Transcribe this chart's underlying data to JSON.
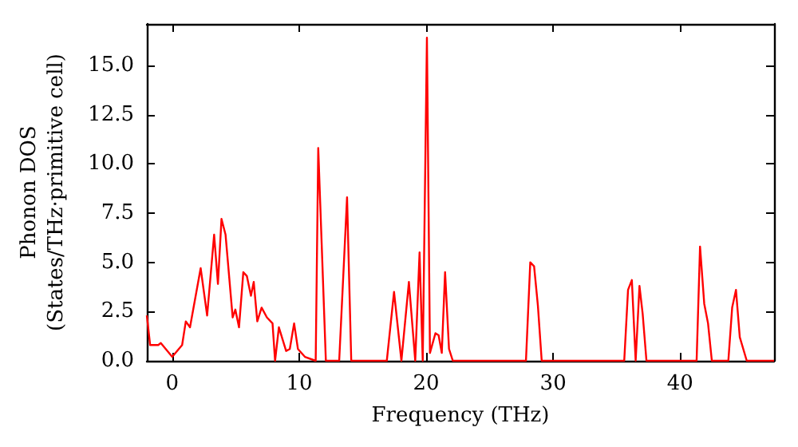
{
  "chart_data": {
    "type": "line",
    "xlabel": "Frequency (THz)",
    "ylabel": "Phonon DOS\n(States/THz·primitive cell)",
    "xlim": [
      -2,
      47.4
    ],
    "ylim": [
      0,
      17.1
    ],
    "xticks": [
      0,
      10,
      20,
      30,
      40
    ],
    "yticks": [
      {
        "value": 0,
        "label": "0.0"
      },
      {
        "value": 2.5,
        "label": "2.5"
      },
      {
        "value": 5,
        "label": "5.0"
      },
      {
        "value": 7.5,
        "label": "7.5"
      },
      {
        "value": 10,
        "label": "10.0"
      },
      {
        "value": 12.5,
        "label": "12.5"
      },
      {
        "value": 15,
        "label": "15.0"
      }
    ],
    "marker": "none",
    "line_style": "solid",
    "series": [
      {
        "color": "#ff0000",
        "x": [
          -2,
          -1.74,
          -1.1,
          -0.9,
          0,
          0.78,
          1.07,
          1.4,
          2.24,
          2.75,
          3.3,
          3.6,
          3.88,
          4.2,
          4.76,
          4.97,
          5.26,
          5.6,
          5.88,
          6.2,
          6.42,
          6.7,
          7.04,
          7.46,
          7.9,
          8.1,
          8.4,
          8.97,
          9.26,
          9.6,
          9.9,
          10.45,
          11.3,
          11.5,
          12.1,
          13.15,
          13.77,
          14.1,
          16.9,
          17.47,
          18.05,
          18.64,
          19.14,
          19.48,
          19.73,
          20.06,
          20.3,
          20.73,
          20.98,
          21.23,
          21.49,
          21.8,
          22.1,
          27.86,
          28.2,
          28.5,
          28.8,
          29.1,
          35.6,
          35.9,
          36.2,
          36.5,
          36.8,
          37.05,
          37.35,
          41.3,
          41.57,
          41.9,
          42.2,
          42.5,
          43.8,
          44.1,
          44.4,
          44.7,
          45.25,
          47.4
        ],
        "values": [
          2.3,
          0.8,
          0.8,
          0.9,
          0.2,
          0.8,
          2.0,
          1.7,
          4.7,
          2.3,
          6.4,
          3.9,
          7.2,
          6.4,
          2.2,
          2.6,
          1.7,
          4.5,
          4.3,
          3.3,
          4.0,
          2.0,
          2.7,
          2.2,
          1.9,
          0,
          1.7,
          0.5,
          0.6,
          1.9,
          0.6,
          0.2,
          0,
          10.8,
          0,
          0,
          8.3,
          0,
          0,
          3.5,
          0,
          4.0,
          0,
          5.5,
          0,
          16.4,
          0.4,
          1.4,
          1.3,
          0.4,
          4.5,
          0.6,
          0,
          0,
          5.0,
          4.8,
          2.8,
          0,
          0,
          3.6,
          4.1,
          0,
          3.8,
          2.4,
          0,
          0,
          5.8,
          2.9,
          1.9,
          0,
          0,
          2.7,
          3.6,
          1.2,
          0,
          0
        ]
      }
    ]
  }
}
